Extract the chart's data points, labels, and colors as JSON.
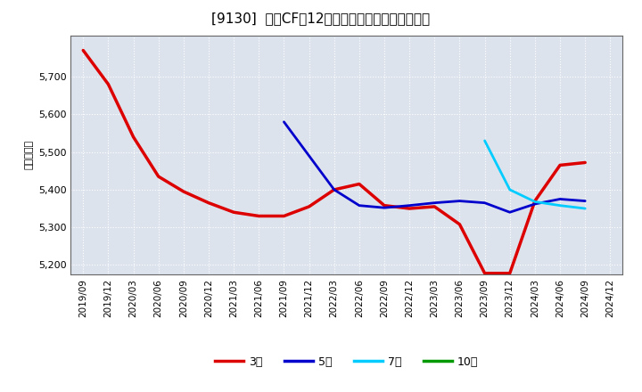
{
  "title": "[9130]  営業CFの12か月移動合計の平均値の推移",
  "ylabel": "（百万円）",
  "ylim": [
    5175,
    5810
  ],
  "yticks": [
    5200,
    5300,
    5400,
    5500,
    5600,
    5700
  ],
  "background_color": "#ffffff",
  "plot_bg_color": "#dde3ed",
  "grid_color": "#ffffff",
  "series": {
    "3year": {
      "color": "#dd0000",
      "label": "3年",
      "linewidth": 2.5,
      "data": [
        [
          "2019-09",
          5770
        ],
        [
          "2019-12",
          5680
        ],
        [
          "2020-03",
          5540
        ],
        [
          "2020-06",
          5435
        ],
        [
          "2020-09",
          5395
        ],
        [
          "2020-12",
          5365
        ],
        [
          "2021-03",
          5340
        ],
        [
          "2021-06",
          5330
        ],
        [
          "2021-09",
          5330
        ],
        [
          "2021-12",
          5355
        ],
        [
          "2022-03",
          5400
        ],
        [
          "2022-06",
          5415
        ],
        [
          "2022-09",
          5358
        ],
        [
          "2022-12",
          5350
        ],
        [
          "2023-03",
          5355
        ],
        [
          "2023-06",
          5308
        ],
        [
          "2023-09",
          5178
        ],
        [
          "2023-12",
          5178
        ],
        [
          "2024-03",
          5370
        ],
        [
          "2024-06",
          5465
        ],
        [
          "2024-09",
          5472
        ]
      ]
    },
    "5year": {
      "color": "#0000cc",
      "label": "5年",
      "linewidth": 2.0,
      "data": [
        [
          "2021-09",
          5580
        ],
        [
          "2021-12",
          5490
        ],
        [
          "2022-03",
          5400
        ],
        [
          "2022-06",
          5358
        ],
        [
          "2022-09",
          5352
        ],
        [
          "2022-12",
          5358
        ],
        [
          "2023-03",
          5365
        ],
        [
          "2023-06",
          5370
        ],
        [
          "2023-09",
          5365
        ],
        [
          "2023-12",
          5340
        ],
        [
          "2024-03",
          5362
        ],
        [
          "2024-06",
          5375
        ],
        [
          "2024-09",
          5370
        ]
      ]
    },
    "7year": {
      "color": "#00ccff",
      "label": "7年",
      "linewidth": 2.0,
      "data": [
        [
          "2023-09",
          5530
        ],
        [
          "2023-12",
          5400
        ],
        [
          "2024-03",
          5368
        ],
        [
          "2024-06",
          5358
        ],
        [
          "2024-09",
          5350
        ]
      ]
    },
    "10year": {
      "color": "#009900",
      "label": "10年",
      "linewidth": 2.0,
      "data": []
    }
  },
  "xtick_labels": [
    "2019/09",
    "2019/12",
    "2020/03",
    "2020/06",
    "2020/09",
    "2020/12",
    "2021/03",
    "2021/06",
    "2021/09",
    "2021/12",
    "2022/03",
    "2022/06",
    "2022/09",
    "2022/12",
    "2023/03",
    "2023/06",
    "2023/09",
    "2023/12",
    "2024/03",
    "2024/06",
    "2024/09",
    "2024/12"
  ],
  "legend_items": [
    {
      "label": "3年",
      "color": "#dd0000"
    },
    {
      "label": "5年",
      "color": "#0000cc"
    },
    {
      "label": "7年",
      "color": "#00ccff"
    },
    {
      "label": "10年",
      "color": "#009900"
    }
  ]
}
